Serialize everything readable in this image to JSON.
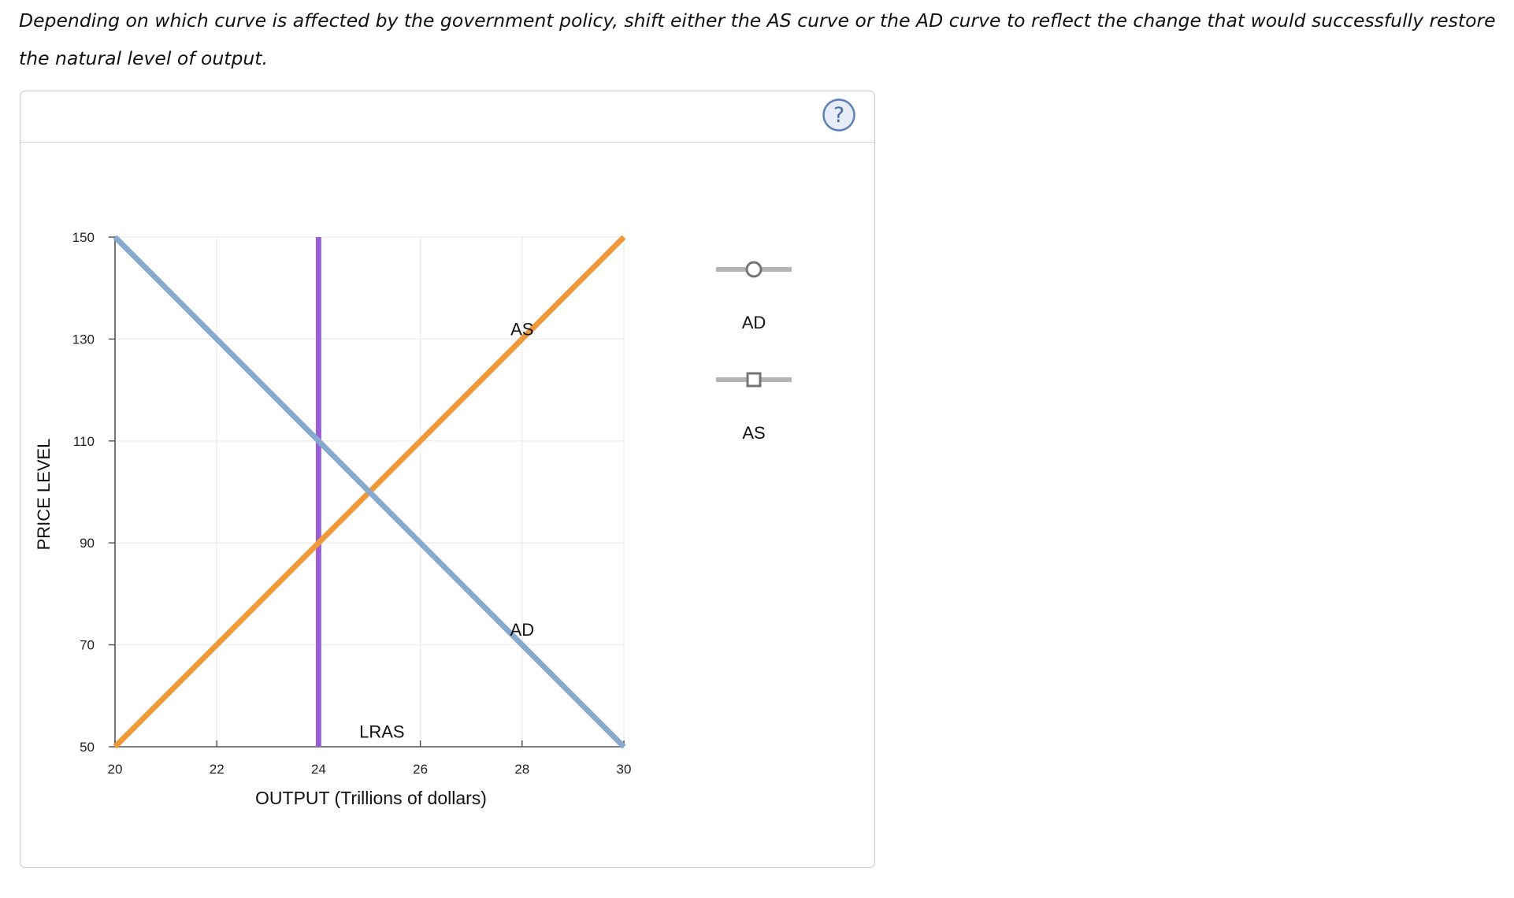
{
  "instruction": "Depending on which curve is affected by the government policy, shift either the AS curve or the AD curve to reflect the change that would successfully restore the natural level of output.",
  "help_icon": "question-mark-icon",
  "colors": {
    "ad": "#87a8cf",
    "as": "#ee9a3a",
    "lras": "#9b5fd6",
    "grid": "#ececec",
    "axis": "#555555",
    "tool_line": "#b3b3b3",
    "tool_marker": "#757575",
    "help_ring": "#5b7fb8",
    "help_fill": "#e6edf8"
  },
  "palette": {
    "items": [
      {
        "label": "AD",
        "marker": "circle"
      },
      {
        "label": "AS",
        "marker": "square"
      }
    ]
  },
  "chart_data": {
    "type": "line",
    "xlabel": "OUTPUT (Trillions of dollars)",
    "ylabel": "PRICE LEVEL",
    "xlim": [
      20,
      30
    ],
    "ylim": [
      50,
      150
    ],
    "xticks": [
      20,
      22,
      24,
      26,
      28,
      30
    ],
    "yticks": [
      50,
      70,
      90,
      110,
      130,
      150
    ],
    "grid": true,
    "series": [
      {
        "name": "AD",
        "x": [
          20,
          30
        ],
        "y": [
          150,
          50
        ],
        "label_at": [
          28,
          73
        ]
      },
      {
        "name": "AS",
        "x": [
          20,
          30
        ],
        "y": [
          50,
          150
        ],
        "label_at": [
          28,
          132
        ]
      },
      {
        "name": "LRAS",
        "x": [
          24,
          24
        ],
        "y": [
          50,
          150
        ],
        "label_at": [
          24.8,
          53
        ]
      }
    ]
  }
}
